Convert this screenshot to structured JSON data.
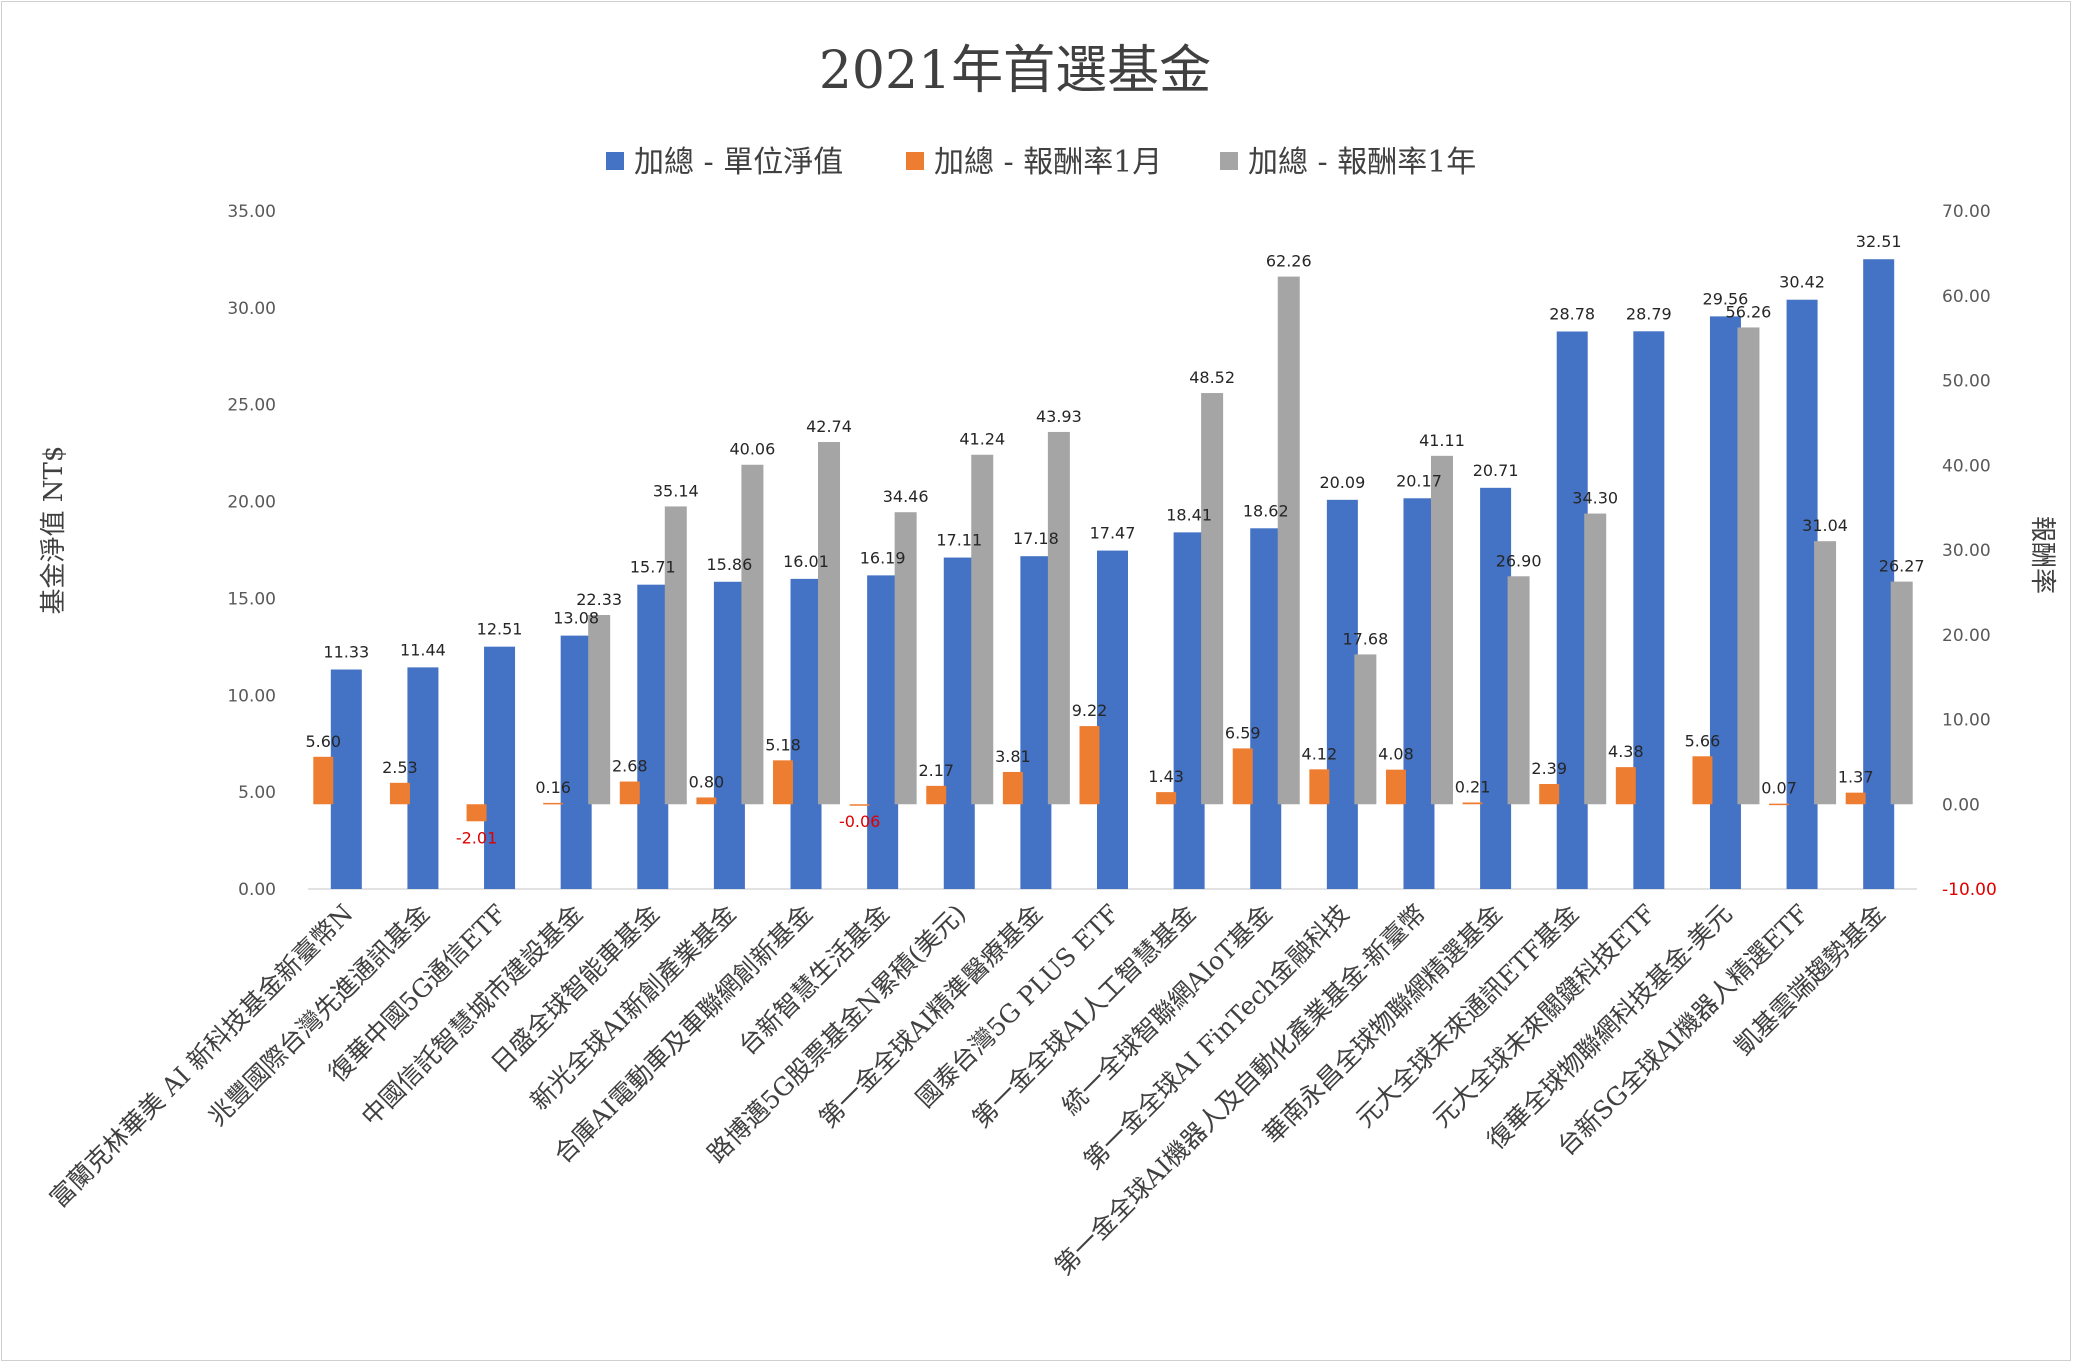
{
  "chart_data": {
    "type": "bar",
    "title": "2021年首選基金",
    "ylabel": "基金淨值 NT$",
    "y2label": "報酬率",
    "ylim": [
      0,
      35
    ],
    "y2lim": [
      -10,
      70
    ],
    "yticks": [
      "0.00",
      "5.00",
      "10.00",
      "15.00",
      "20.00",
      "25.00",
      "30.00",
      "35.00"
    ],
    "y2ticks": [
      "-10.00",
      "0.00",
      "10.00",
      "20.00",
      "30.00",
      "40.00",
      "50.00",
      "60.00",
      "70.00"
    ],
    "legend_position": "top",
    "grid": false,
    "colors": {
      "nav": "#4472C4",
      "ret1m": "#ED7D31",
      "ret1y": "#A5A5A5",
      "negative_label": "#E00000"
    },
    "categories": [
      "富蘭克林華美 AI 新科技基金新臺幣N",
      "兆豐國際台灣先進通訊基金",
      "復華中國5G通信ETF",
      "中國信託智慧城市建設基金",
      "日盛全球智能車基金",
      "新光全球AI新創產業基金",
      "合庫AI電動車及車聯網創新基金",
      "台新智慧生活基金",
      "路博邁5G股票基金N累積(美元)",
      "第一金全球AI精準醫療基金",
      "國泰台灣5G PLUS ETF",
      "第一金全球AI人工智慧基金",
      "統一全球智聯網AIoT基金",
      "第一金全球AI FinTech金融科技",
      "第一金全球AI機器人及自動化產業基金-新臺幣",
      "華南永昌全球物聯網精選基金",
      "元大全球未來通訊ETF基金",
      "元大全球未來關鍵科技ETF",
      "復華全球物聯網科技基金-美元",
      "台新SG全球AI機器人精選ETF",
      "凱基雲端趨勢基金"
    ],
    "series": [
      {
        "name": "加總 - 單位淨值",
        "axis": "left",
        "values": [
          11.33,
          11.44,
          12.51,
          13.08,
          15.71,
          15.86,
          16.01,
          16.19,
          17.11,
          17.18,
          17.47,
          18.41,
          18.62,
          20.09,
          20.17,
          20.71,
          28.78,
          28.79,
          29.56,
          30.42,
          32.51
        ]
      },
      {
        "name": "加總 - 報酬率1月",
        "axis": "right",
        "values": [
          5.6,
          2.53,
          -2.01,
          0.16,
          2.68,
          0.8,
          5.18,
          -0.06,
          2.17,
          3.81,
          9.22,
          1.43,
          6.59,
          4.12,
          4.08,
          0.21,
          2.39,
          4.38,
          5.66,
          0.07,
          1.37
        ]
      },
      {
        "name": "加總 - 報酬率1年",
        "axis": "right",
        "values": [
          null,
          null,
          null,
          22.33,
          35.14,
          40.06,
          42.74,
          34.46,
          41.24,
          43.93,
          null,
          48.52,
          62.26,
          17.68,
          41.11,
          26.9,
          34.3,
          null,
          56.26,
          31.04,
          26.27
        ]
      }
    ]
  }
}
